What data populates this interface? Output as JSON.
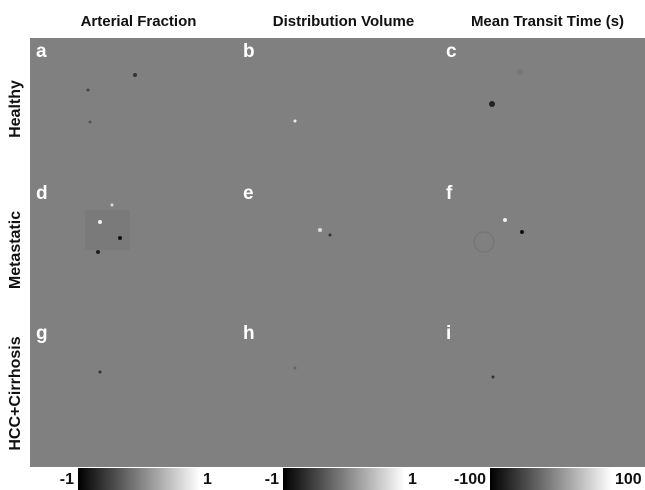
{
  "columns": [
    "Arterial Fraction",
    "Distribution Volume",
    "Mean Transit Time (s)"
  ],
  "rows": [
    "Healthy",
    "Metastatic",
    "HCC+Cirrhosis"
  ],
  "panels": [
    "a",
    "b",
    "c",
    "d",
    "e",
    "f",
    "g",
    "h",
    "i"
  ],
  "colorbars": [
    {
      "min": "-1",
      "max": "1"
    },
    {
      "min": "-1",
      "max": "1"
    },
    {
      "min": "-100",
      "max": "100"
    }
  ]
}
